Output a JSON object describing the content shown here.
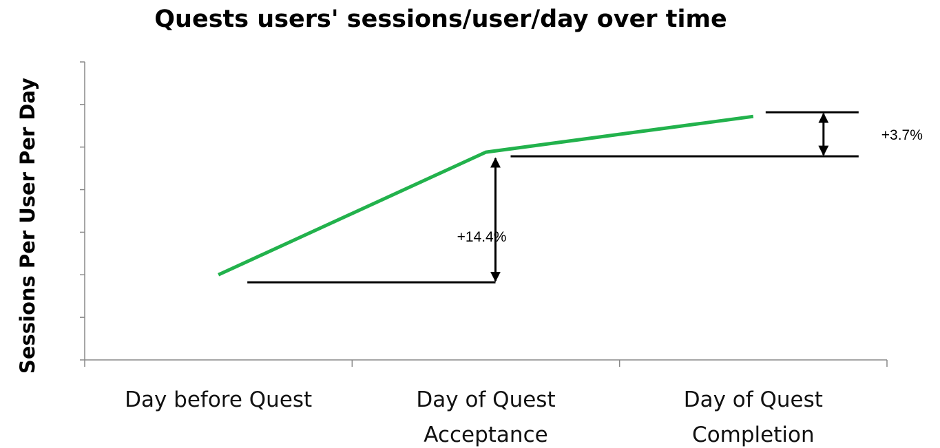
{
  "chart_data": {
    "type": "line",
    "title": "Quests users' sessions/user/day over time",
    "ylabel": "Sessions Per User Per Day",
    "categories": [
      "Day before Quest",
      "Day of Quest Acceptance",
      "Day of Quest Completion"
    ],
    "series": [
      {
        "name": "Sessions per user per day",
        "color": "#22b24c",
        "values": [
          1.0,
          1.144,
          1.186
        ]
      }
    ],
    "ylim": [
      0.9,
      1.25
    ],
    "yticks": [
      0.9,
      0.95,
      1.0,
      1.05,
      1.1,
      1.15,
      1.2,
      1.25
    ],
    "annotations": [
      "+14.4%",
      "+3.7%"
    ],
    "grid": false
  }
}
